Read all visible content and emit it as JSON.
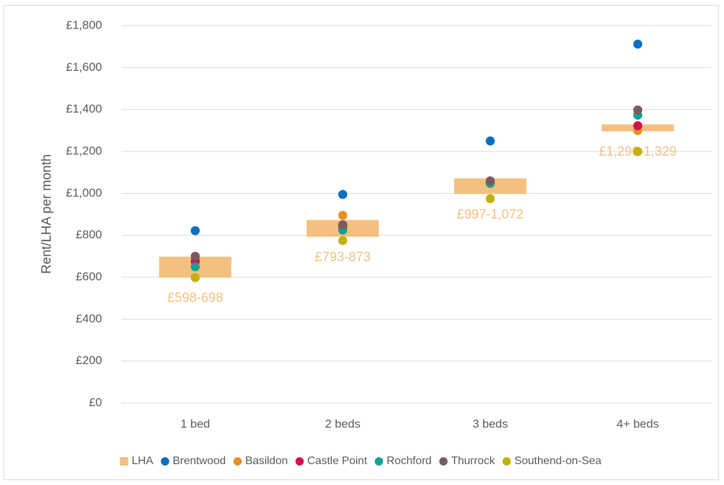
{
  "chart_data": {
    "type": "range-scatter",
    "y_label": "Rent/LHA per month",
    "categories": [
      "1 bed",
      "2 beds",
      "3 beds",
      "4+ beds"
    ],
    "ylim": [
      0,
      1800
    ],
    "yticks": [
      {
        "value": 0,
        "label": "£0"
      },
      {
        "value": 200,
        "label": "£200"
      },
      {
        "value": 400,
        "label": "£400"
      },
      {
        "value": 600,
        "label": "£600"
      },
      {
        "value": 800,
        "label": "£800"
      },
      {
        "value": 1000,
        "label": "£1,000"
      },
      {
        "value": 1200,
        "label": "£1,200"
      },
      {
        "value": 1400,
        "label": "£1,400"
      },
      {
        "value": 1600,
        "label": "£1,600"
      },
      {
        "value": 1800,
        "label": "£1,800"
      }
    ],
    "grid": true,
    "legend": "bottom",
    "range": {
      "name": "LHA",
      "color": "#f3c07f",
      "low": [
        598,
        793,
        997,
        1296
      ],
      "high": [
        698,
        873,
        1072,
        1329
      ],
      "value_labels": [
        "£598-698",
        "£793-873",
        "£997-1,072",
        "£1,296-1,329"
      ]
    },
    "series": [
      {
        "name": "Brentwood",
        "color": "#0a6fc2",
        "values": [
          822,
          995,
          1250,
          1712
        ]
      },
      {
        "name": "Basildon",
        "color": "#e98f1f",
        "values": [
          680,
          895,
          1050,
          1300
        ]
      },
      {
        "name": "Castle Point",
        "color": "#d1104f",
        "values": [
          675,
          840,
          1050,
          1323
        ]
      },
      {
        "name": "Rochford",
        "color": "#16a096",
        "values": [
          650,
          825,
          1048,
          1373
        ]
      },
      {
        "name": "Thurrock",
        "color": "#7b5a5c",
        "values": [
          700,
          850,
          1060,
          1398
        ]
      },
      {
        "name": "Southend-on-Sea",
        "color": "#c2b00f",
        "values": [
          598,
          775,
          975,
          1200
        ]
      }
    ]
  }
}
